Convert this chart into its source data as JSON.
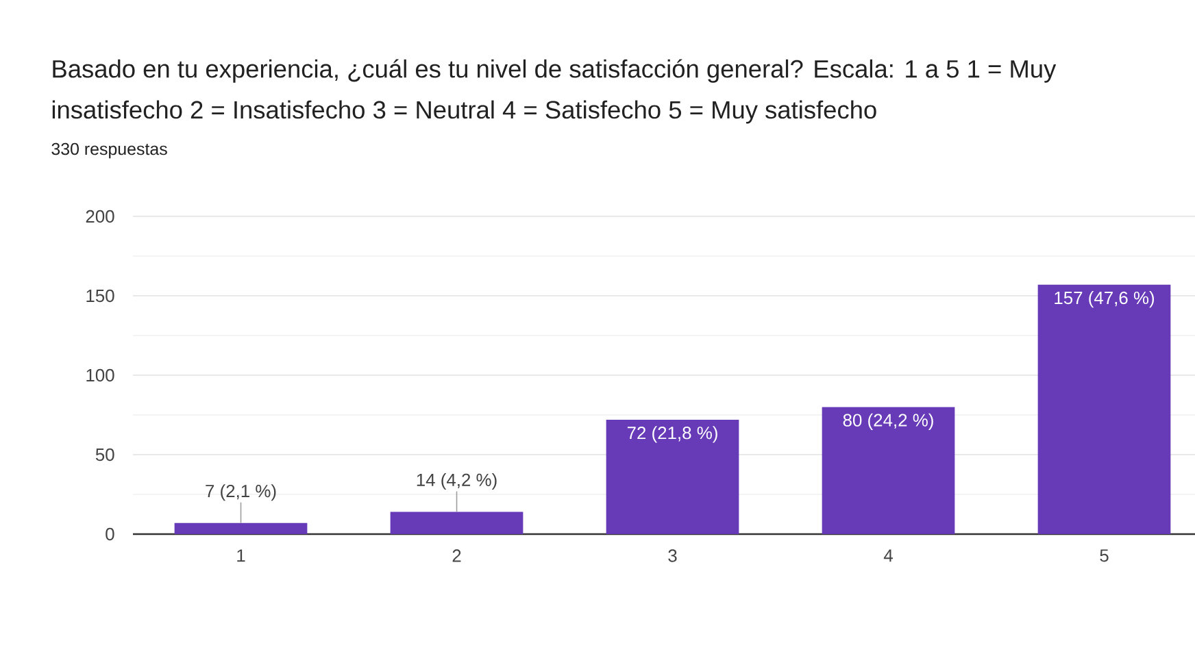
{
  "chart_data": {
    "type": "bar",
    "title": "Basado en tu experiencia, ¿cuál es tu nivel de satisfacción general?   Escala: 1 a 5     1 = Muy insatisfecho  2 = Insatisfecho  3 = Neutral  4 = Satisfecho  5 = Muy satisfecho",
    "subtitle": "330 respuestas",
    "categories": [
      "1",
      "2",
      "3",
      "4",
      "5"
    ],
    "values": [
      7,
      14,
      72,
      80,
      157
    ],
    "value_labels": [
      "7 (2,1 %)",
      "14 (4,2 %)",
      "72 (21,8 %)",
      "80 (24,2 %)",
      "157 (47,6 %)"
    ],
    "color": "#673ab7",
    "ylim": [
      0,
      200
    ],
    "yticks": [
      0,
      50,
      100,
      150,
      200
    ],
    "grid": "y"
  }
}
